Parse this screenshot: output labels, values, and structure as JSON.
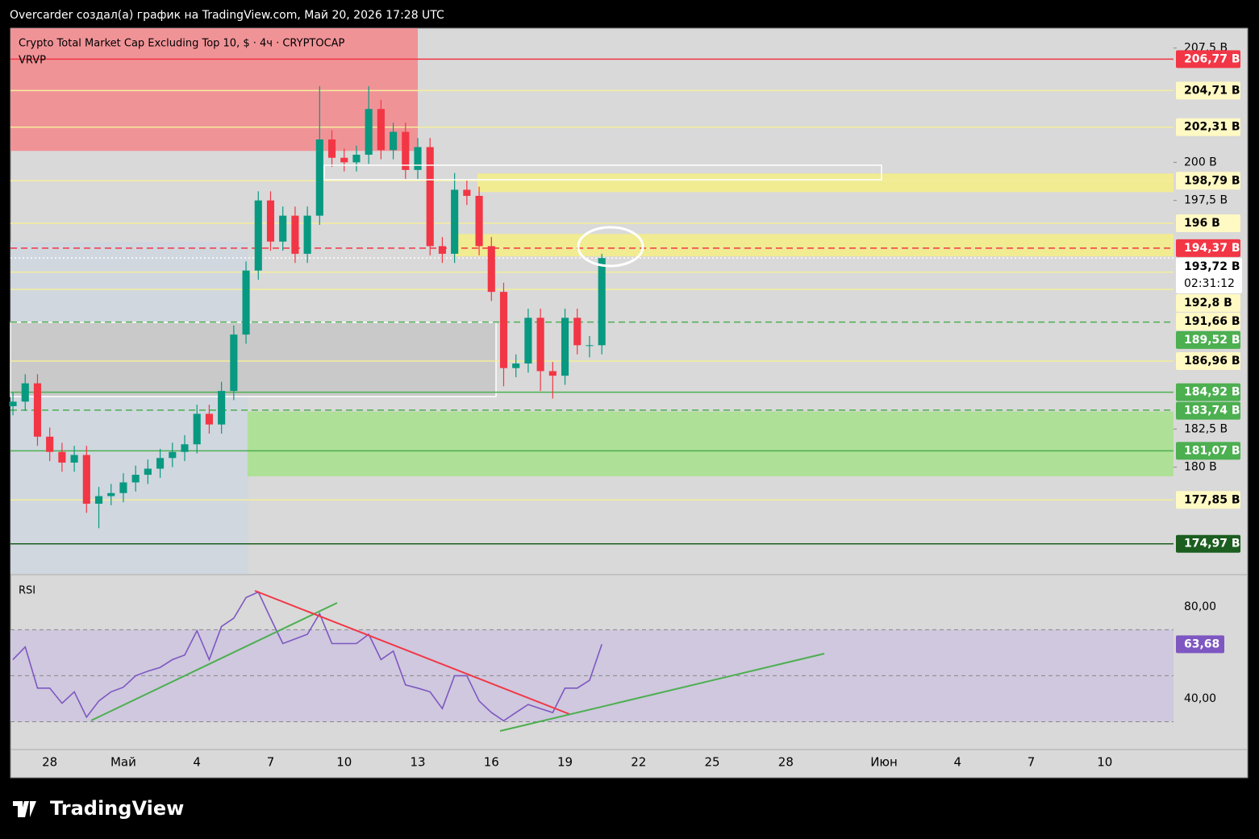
{
  "header": {
    "caption": "Overcarder создал(а) график на TradingView.com, Май 20, 2026 17:28 UTC",
    "brand": "TradingView"
  },
  "chart_data": [
    {
      "type": "candlestick",
      "title": "Crypto Total Market Cap Excluding Top 10, $ · 4ч · CRYPTOCAP",
      "indicator": "VRVP",
      "x": [
        -1.5,
        -1,
        -0.5,
        0,
        0.5,
        1,
        1.5,
        2,
        2.5,
        3,
        3.5,
        4,
        4.5,
        5,
        5.5,
        6,
        6.5,
        7,
        7.5,
        8,
        8.5,
        9,
        9.5,
        10,
        10.5,
        11,
        11.5,
        12,
        12.5,
        13,
        13.5,
        14,
        14.5,
        15,
        15.5,
        16,
        16.5,
        17,
        17.5,
        18,
        18.5,
        19,
        19.5,
        20,
        20.5,
        21,
        21.5,
        22,
        22.5
      ],
      "open": [
        184.0,
        184.3,
        185.5,
        182.0,
        181.0,
        180.3,
        180.8,
        177.6,
        178.1,
        178.3,
        179.0,
        179.5,
        179.9,
        180.6,
        181.0,
        181.5,
        183.5,
        182.8,
        185.0,
        188.7,
        192.9,
        197.5,
        194.8,
        196.5,
        194.0,
        196.5,
        201.5,
        200.3,
        200.0,
        200.5,
        203.5,
        200.8,
        202.0,
        199.5,
        201.0,
        194.5,
        194.0,
        198.2,
        197.8,
        194.5,
        191.5,
        186.5,
        186.8,
        189.8,
        186.3,
        186.0,
        189.8,
        188.0,
        188.0
      ],
      "high": [
        184.9,
        186.1,
        186.1,
        182.6,
        181.6,
        181.4,
        181.4,
        178.7,
        178.9,
        179.6,
        180.1,
        180.5,
        181.2,
        181.6,
        182.1,
        184.1,
        184.1,
        185.6,
        189.3,
        193.5,
        198.1,
        198.1,
        197.1,
        197.1,
        197.1,
        205.0,
        202.1,
        200.9,
        201.1,
        205.0,
        204.1,
        202.6,
        202.6,
        201.6,
        201.6,
        195.1,
        199.3,
        198.8,
        198.4,
        195.1,
        192.1,
        187.4,
        190.4,
        190.4,
        186.9,
        190.4,
        190.4,
        188.6,
        194.0
      ],
      "low": [
        183.4,
        183.7,
        181.4,
        180.4,
        179.7,
        179.7,
        177.0,
        176.0,
        177.5,
        177.7,
        178.4,
        178.9,
        179.3,
        180.0,
        180.4,
        180.9,
        182.2,
        182.2,
        184.4,
        188.1,
        192.3,
        194.2,
        194.2,
        193.4,
        193.4,
        195.9,
        199.7,
        199.4,
        199.4,
        199.9,
        200.2,
        200.2,
        198.9,
        198.9,
        193.9,
        193.4,
        193.4,
        197.2,
        193.9,
        190.9,
        185.3,
        185.9,
        186.2,
        185.0,
        184.5,
        185.4,
        187.4,
        187.2,
        187.4
      ],
      "close": [
        184.3,
        185.5,
        182.0,
        181.0,
        180.3,
        180.8,
        177.6,
        178.1,
        178.3,
        179.0,
        179.5,
        179.9,
        180.6,
        181.0,
        181.5,
        183.5,
        182.8,
        185.0,
        188.7,
        192.9,
        197.5,
        194.8,
        196.5,
        194.0,
        196.5,
        201.5,
        200.3,
        200.0,
        200.5,
        203.5,
        200.8,
        202.0,
        199.5,
        201.0,
        194.5,
        194.0,
        198.2,
        197.8,
        194.5,
        191.5,
        186.5,
        186.8,
        189.8,
        186.3,
        186.0,
        189.8,
        188.0,
        188.0,
        193.72
      ],
      "up_color": "#089981",
      "down_color": "#f23645",
      "xlim": [
        -1.6,
        45.8
      ],
      "ylim": [
        173.0,
        208.8
      ],
      "yticks": [
        {
          "value": 207.5,
          "label": "207,5 B"
        },
        {
          "value": 200,
          "label": "200 B"
        },
        {
          "value": 197.5,
          "label": "197,5 B"
        },
        {
          "value": 182.5,
          "label": "182,5 B"
        },
        {
          "value": 180,
          "label": "180 B"
        }
      ],
      "xticks": [
        {
          "value": 0,
          "label": "28"
        },
        {
          "value": 3,
          "label": "Май"
        },
        {
          "value": 6,
          "label": "4"
        },
        {
          "value": 9,
          "label": "7"
        },
        {
          "value": 12,
          "label": "10"
        },
        {
          "value": 15,
          "label": "13"
        },
        {
          "value": 18,
          "label": "16"
        },
        {
          "value": 21,
          "label": "19"
        },
        {
          "value": 24,
          "label": "22"
        },
        {
          "value": 27,
          "label": "25"
        },
        {
          "value": 30,
          "label": "28"
        },
        {
          "value": 34,
          "label": "Июн"
        },
        {
          "value": 37,
          "label": "4"
        },
        {
          "value": 40,
          "label": "7"
        },
        {
          "value": 43,
          "label": "10"
        }
      ],
      "zones": [
        {
          "ylim": [
            200.75,
            208.8
          ],
          "xlim": [
            -1.6,
            15.0
          ],
          "color": "#f28b8f"
        },
        {
          "ylim": [
            198.05,
            199.27
          ],
          "xlim": [
            17.43,
            45.8
          ],
          "color": "#f3ec8a"
        },
        {
          "ylim": [
            193.83,
            195.3
          ],
          "xlim": [
            16.5,
            45.8
          ],
          "color": "#f3ec8a"
        },
        {
          "ylim": [
            179.4,
            183.65
          ],
          "xlim": [
            8.06,
            45.8
          ],
          "color": "#a9e08f"
        }
      ],
      "levels": [
        {
          "value": 206.77,
          "label": "206,77 B",
          "color": "#f23645",
          "text_color": "#ffffff",
          "style": "solid"
        },
        {
          "value": 204.71,
          "label": "204,71 B",
          "color": "#fff9c4",
          "text_color": "#000000",
          "style": "solid"
        },
        {
          "value": 202.31,
          "label": "202,31 B",
          "color": "#fff9c4",
          "text_color": "#000000",
          "style": "solid"
        },
        {
          "value": 198.79,
          "label": "198,79 B",
          "color": "#fff9c4",
          "text_color": "#000000",
          "style": "solid"
        },
        {
          "value": 196,
          "label": "196 B",
          "color": "#fff9c4",
          "text_color": "#000000",
          "style": "solid"
        },
        {
          "value": 194.37,
          "label": "194,37 B",
          "color": "#f23645",
          "text_color": "#ffffff",
          "style": "dashed"
        },
        {
          "value": 193.72,
          "label": "193,72 B",
          "color": "#ffffff",
          "text_color": "#000000",
          "style": "dotted",
          "countdown": "02:31:12"
        },
        {
          "value": 192.8,
          "label": "192,8 B",
          "color": "#fff9c4",
          "text_color": "#000000",
          "style": "solid"
        },
        {
          "value": 191.66,
          "label": "191,66 B",
          "color": "#fff9c4",
          "text_color": "#000000",
          "style": "solid"
        },
        {
          "value": 189.52,
          "label": "189,52 B",
          "color": "#4caf50",
          "text_color": "#ffffff",
          "style": "dashed"
        },
        {
          "value": 186.96,
          "label": "186,96 B",
          "color": "#fff9c4",
          "text_color": "#000000",
          "style": "solid"
        },
        {
          "value": 184.92,
          "label": "184,92 B",
          "color": "#4caf50",
          "text_color": "#ffffff",
          "style": "solid"
        },
        {
          "value": 183.74,
          "label": "183,74 B",
          "color": "#4caf50",
          "text_color": "#ffffff",
          "style": "dashed"
        },
        {
          "value": 181.07,
          "label": "181,07 B",
          "color": "#4caf50",
          "text_color": "#ffffff",
          "style": "solid"
        },
        {
          "value": 177.85,
          "label": "177,85 B",
          "color": "#fff9c4",
          "text_color": "#000000",
          "style": "solid"
        },
        {
          "value": 174.97,
          "label": "174,97 B",
          "color": "#1b5e20",
          "text_color": "#ffffff",
          "style": "solid"
        }
      ]
    },
    {
      "type": "line",
      "title": "RSI",
      "color": "#7e57c2",
      "x": [
        -1.5,
        -1,
        -0.5,
        0,
        0.5,
        1,
        1.5,
        2,
        2.5,
        3,
        3.5,
        4,
        4.5,
        5,
        5.5,
        6,
        6.5,
        7,
        7.5,
        8,
        8.5,
        9,
        9.5,
        10,
        10.5,
        11,
        11.5,
        12,
        12.5,
        13,
        13.5,
        14,
        14.5,
        15,
        15.5,
        16,
        16.5,
        17,
        17.5,
        18,
        18.5,
        19,
        19.5,
        20,
        20.5,
        21,
        21.5,
        22,
        22.5
      ],
      "values": [
        57,
        62.5,
        44.6,
        44.6,
        38,
        43,
        32,
        39,
        43,
        45,
        50,
        52,
        53.6,
        57,
        59,
        69.6,
        57,
        71.4,
        75,
        84,
        86.4,
        75,
        64,
        66,
        68,
        77,
        64,
        64,
        64,
        68,
        57,
        60.7,
        46,
        44.6,
        43,
        35.7,
        50,
        50,
        39,
        34,
        30.4,
        34,
        37.5,
        35.7,
        34,
        44.6,
        44.6,
        48,
        63.68
      ],
      "value_labels": [
        null,
        null,
        null,
        null,
        null,
        null,
        null,
        null,
        null,
        null,
        null,
        null,
        null,
        null,
        null,
        null,
        null,
        null,
        null,
        null,
        null,
        null,
        null,
        null,
        null,
        null,
        null,
        null,
        null,
        null,
        null,
        null,
        null,
        null,
        null,
        null,
        null,
        null,
        null,
        null,
        null,
        null,
        null,
        null,
        null,
        null,
        null,
        null,
        "63,68"
      ],
      "xlim": [
        -1.6,
        45.8
      ],
      "ylim": [
        17.9,
        93.6
      ],
      "yticks": [
        {
          "value": 80,
          "label": "80,00"
        },
        {
          "value": 40,
          "label": "40,00"
        }
      ],
      "bands": [
        30,
        50,
        70
      ],
      "band_color": "#cfc8de"
    }
  ]
}
